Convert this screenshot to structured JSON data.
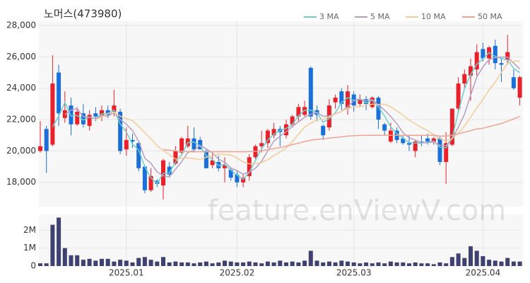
{
  "chart_data": [
    {
      "type": "candlestick",
      "title": "노머스(473980)",
      "watermark": "feature.enViewV.com",
      "up_color": "#e8212b",
      "down_color": "#1b6fd9",
      "categories": [
        null,
        null,
        null,
        null,
        null,
        null,
        null,
        null,
        null,
        null,
        null,
        null,
        null,
        null,
        "2025.01",
        null,
        null,
        null,
        null,
        null,
        null,
        null,
        null,
        null,
        null,
        null,
        null,
        null,
        null,
        null,
        null,
        null,
        "2025.02",
        null,
        null,
        null,
        null,
        null,
        null,
        null,
        null,
        null,
        null,
        null,
        null,
        null,
        null,
        null,
        null,
        null,
        null,
        "2025.03",
        null,
        null,
        null,
        null,
        null,
        null,
        null,
        null,
        null,
        null,
        null,
        null,
        null,
        null,
        null,
        null,
        null,
        null,
        null,
        null,
        "2025.04",
        null,
        null,
        null,
        null,
        null,
        null
      ],
      "open": [
        20000,
        21400,
        20400,
        25000,
        22100,
        22900,
        21700,
        22400,
        21600,
        22400,
        22200,
        22600,
        22500,
        22500,
        20100,
        20700,
        20500,
        19000,
        17500,
        18100,
        17800,
        19000,
        19200,
        19900,
        20300,
        20800,
        20700,
        20000,
        19100,
        19300,
        18900,
        18800,
        18500,
        18000,
        18400,
        19600,
        20300,
        20500,
        21000,
        21400,
        21000,
        21700,
        22200,
        22300,
        25300,
        22600,
        21600,
        21500,
        23100,
        23800,
        22700,
        23600,
        23000,
        23300,
        22800,
        23400,
        21700,
        20600,
        21300,
        20800,
        20500,
        20000,
        20600,
        20800,
        20600,
        20800,
        19300,
        20400,
        22700,
        24300,
        24800,
        25200,
        26500,
        25900,
        26700,
        25600,
        25800,
        24700,
        23400
      ],
      "high": [
        21900,
        21600,
        26100,
        25500,
        23800,
        23400,
        22800,
        23000,
        22600,
        22800,
        22900,
        22900,
        23900,
        22700,
        21500,
        21100,
        20600,
        19100,
        18900,
        18200,
        19500,
        19300,
        20300,
        20900,
        21600,
        21500,
        20900,
        20100,
        19800,
        19700,
        19600,
        18900,
        18800,
        18500,
        19800,
        20400,
        21300,
        21400,
        21800,
        21600,
        22000,
        22300,
        23000,
        23200,
        25400,
        22900,
        21700,
        23300,
        23600,
        24000,
        24200,
        23800,
        23600,
        23500,
        23500,
        23500,
        21800,
        21800,
        21500,
        21000,
        21000,
        20700,
        21000,
        21100,
        20900,
        20900,
        21200,
        22700,
        24700,
        25200,
        25900,
        26800,
        26900,
        26700,
        27100,
        25900,
        27400,
        25200,
        24800
      ],
      "low": [
        19900,
        18600,
        20300,
        21600,
        21800,
        21000,
        21600,
        21500,
        21300,
        21900,
        21900,
        22100,
        22200,
        19800,
        19700,
        20200,
        18700,
        17300,
        17400,
        17700,
        16900,
        18400,
        19100,
        19700,
        20200,
        19900,
        20100,
        18900,
        18900,
        18700,
        18000,
        18100,
        17700,
        17700,
        18100,
        19500,
        19900,
        20200,
        20800,
        20300,
        20800,
        21500,
        21900,
        22200,
        22000,
        21900,
        20700,
        21300,
        22700,
        22600,
        22300,
        22500,
        22800,
        22600,
        22700,
        21400,
        21000,
        20500,
        20500,
        20400,
        20000,
        19600,
        20300,
        20400,
        20400,
        19100,
        17900,
        20300,
        22400,
        24000,
        23200,
        24800,
        25700,
        25500,
        25200,
        24400,
        25500,
        23900,
        22900
      ],
      "close": [
        20300,
        20000,
        24300,
        22400,
        22600,
        21700,
        22500,
        21700,
        22300,
        22200,
        22600,
        22300,
        22900,
        20000,
        20700,
        20600,
        18900,
        17500,
        18400,
        17900,
        19400,
        18500,
        20000,
        20800,
        20800,
        20100,
        20100,
        18900,
        19400,
        18900,
        19100,
        18300,
        18000,
        18300,
        19600,
        20300,
        20500,
        21300,
        21400,
        21200,
        21700,
        22200,
        22800,
        22800,
        22200,
        22300,
        21000,
        22900,
        23400,
        23000,
        23800,
        22900,
        23300,
        23000,
        23400,
        22000,
        21300,
        21300,
        20700,
        20500,
        20400,
        20600,
        20500,
        20600,
        20800,
        19300,
        20500,
        22700,
        24300,
        24900,
        25400,
        26300,
        25900,
        26600,
        25600,
        25500,
        26300,
        24000,
        24700
      ],
      "series": [
        {
          "name": "3 MA",
          "color": "#6ccfcf",
          "values": [
            null,
            null,
            21533,
            22233,
            23100,
            22233,
            22267,
            21967,
            22167,
            22067,
            22367,
            22367,
            22600,
            21733,
            21200,
            20433,
            20067,
            19000,
            18267,
            17933,
            18567,
            18600,
            19300,
            19767,
            20533,
            20567,
            20333,
            19700,
            19467,
            19067,
            19133,
            18767,
            18467,
            18200,
            18633,
            19400,
            20133,
            20700,
            21067,
            21300,
            21433,
            21700,
            22233,
            22600,
            22600,
            22433,
            21833,
            22067,
            22433,
            23100,
            23400,
            23233,
            23333,
            23067,
            23233,
            22800,
            22233,
            21533,
            21100,
            20833,
            20533,
            20500,
            20500,
            20567,
            20633,
            20233,
            20200,
            20833,
            22500,
            23967,
            24867,
            25533,
            25867,
            26267,
            26033,
            25900,
            25800,
            25267,
            25000
          ]
        },
        {
          "name": "5 MA",
          "color": "#b59ec2",
          "values": [
            null,
            null,
            null,
            null,
            22320,
            22600,
            22700,
            22180,
            22140,
            22080,
            22260,
            22220,
            22460,
            22000,
            21700,
            21300,
            20620,
            19540,
            19220,
            18660,
            18420,
            18340,
            18840,
            19320,
            19900,
            20040,
            20360,
            20140,
            19880,
            19480,
            19280,
            18920,
            18740,
            18520,
            18660,
            18900,
            19340,
            20000,
            20620,
            20940,
            21220,
            21560,
            21860,
            22140,
            22340,
            22460,
            22220,
            22240,
            22360,
            22520,
            22820,
            23200,
            23280,
            23200,
            23280,
            22920,
            22600,
            22200,
            21740,
            21160,
            20840,
            20700,
            20540,
            20520,
            20580,
            20360,
            20340,
            20780,
            21520,
            22340,
            23560,
            24720,
            25360,
            25820,
            25960,
            25980,
            25980,
            25600,
            25220
          ]
        },
        {
          "name": "10 MA",
          "color": "#f2cc99",
          "values": [
            null,
            null,
            null,
            null,
            null,
            null,
            null,
            null,
            null,
            21990,
            22180,
            22410,
            22450,
            22220,
            22050,
            21940,
            21580,
            21160,
            20770,
            20340,
            20020,
            19770,
            19480,
            19540,
            19560,
            19510,
            19460,
            19600,
            19700,
            19800,
            19770,
            19750,
            19550,
            19300,
            19180,
            19200,
            19260,
            19450,
            19700,
            19930,
            20200,
            20590,
            21070,
            21520,
            21780,
            21980,
            22010,
            22170,
            22370,
            22520,
            22730,
            22800,
            22850,
            22880,
            22980,
            22960,
            22980,
            22820,
            22550,
            22300,
            21960,
            21730,
            21500,
            21300,
            21040,
            20770,
            20640,
            20790,
            21150,
            21580,
            22160,
            22740,
            23280,
            23880,
            24390,
            25010,
            25590,
            25720,
            25740
          ]
        },
        {
          "name": "50 MA",
          "color": "#f0a592",
          "values": [
            null,
            null,
            null,
            null,
            null,
            null,
            null,
            null,
            null,
            null,
            null,
            null,
            null,
            null,
            null,
            null,
            null,
            null,
            null,
            null,
            20100,
            20050,
            20000,
            19980,
            19960,
            19950,
            19950,
            19950,
            19950,
            19950,
            19950,
            19950,
            19950,
            19950,
            19960,
            19980,
            20020,
            20080,
            20150,
            20220,
            20300,
            20400,
            20500,
            20600,
            20680,
            20740,
            20780,
            20820,
            20860,
            20900,
            20950,
            20970,
            20990,
            21000,
            21000,
            21000,
            21000,
            21000,
            21000,
            21000,
            21000,
            21000,
            21000,
            21000,
            21000,
            20950,
            20950,
            21000,
            21100,
            21200,
            21300,
            21400,
            21450,
            21550,
            21650,
            21750,
            21900,
            22050,
            22200
          ]
        }
      ],
      "ylim": [
        16500,
        28000
      ],
      "yticks": [
        {
          "value": 18000,
          "label": "18,000"
        },
        {
          "value": 20000,
          "label": "20,000"
        },
        {
          "value": 22000,
          "label": "22,000"
        },
        {
          "value": 24000,
          "label": "24,000"
        },
        {
          "value": 26000,
          "label": "26,000"
        },
        {
          "value": 28000,
          "label": "28,000"
        }
      ],
      "grid": true,
      "legend": "top-right"
    },
    {
      "type": "bar",
      "color": "#3f4170",
      "values": [
        150000,
        150000,
        2300000,
        2700000,
        1000000,
        600000,
        600000,
        350000,
        400000,
        300000,
        400000,
        400000,
        250000,
        350000,
        300000,
        200000,
        450000,
        500000,
        350000,
        250000,
        500000,
        200000,
        250000,
        200000,
        200000,
        150000,
        200000,
        250000,
        150000,
        200000,
        300000,
        250000,
        200000,
        200000,
        250000,
        200000,
        150000,
        250000,
        200000,
        300000,
        200000,
        250000,
        200000,
        300000,
        850000,
        300000,
        200000,
        250000,
        200000,
        300000,
        250000,
        200000,
        150000,
        200000,
        150000,
        200000,
        150000,
        250000,
        200000,
        200000,
        150000,
        200000,
        150000,
        150000,
        100000,
        200000,
        150000,
        500000,
        700000,
        450000,
        1100000,
        850000,
        550000,
        350000,
        300000,
        250000,
        450000,
        250000,
        250000
      ],
      "ylim": [
        0,
        2800000
      ],
      "yticks": [
        0,
        {
          "value": 1000000,
          "label": "1M"
        },
        {
          "value": 2000000,
          "label": "2M"
        }
      ]
    }
  ]
}
